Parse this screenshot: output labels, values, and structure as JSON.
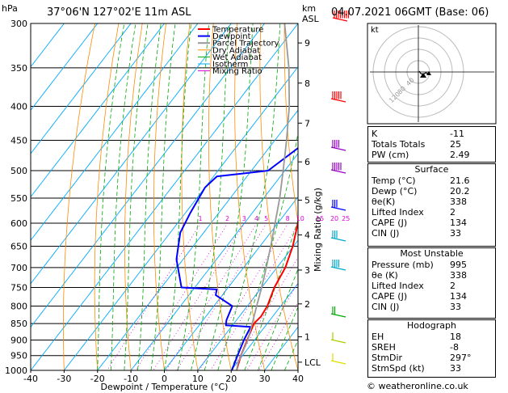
{
  "header": {
    "hpa_label": "hPa",
    "location": "37°06'N  127°02'E  11m  ASL",
    "km_label": "km",
    "asl_label": "ASL",
    "date": "04.07.2021  06GMT  (Base: 06)"
  },
  "legend": [
    {
      "label": "Temperature",
      "color": "#ff0000"
    },
    {
      "label": "Dewpoint",
      "color": "#0000ff"
    },
    {
      "label": "Parcel Trajectory",
      "color": "#999999"
    },
    {
      "label": "Dry Adiabat",
      "color": "#ff8c00"
    },
    {
      "label": "Wet Adiabat",
      "color": "#00aa00"
    },
    {
      "label": "Isotherm",
      "color": "#00aaff"
    },
    {
      "label": "Mixing Ratio",
      "color": "#dd00dd"
    }
  ],
  "chart_data": {
    "type": "line",
    "xlabel": "Dewpoint / Temperature (°C)",
    "ylabel": "hPa",
    "xlim": [
      -40,
      40
    ],
    "ylim": [
      1000,
      300
    ],
    "x_ticks": [
      "-40",
      "-30",
      "-20",
      "-10",
      "0",
      "10",
      "20",
      "30",
      "40"
    ],
    "pressure_ticks": [
      "300",
      "350",
      "400",
      "450",
      "500",
      "550",
      "600",
      "650",
      "700",
      "750",
      "800",
      "850",
      "900",
      "950",
      "1000"
    ],
    "height_ticks": [
      {
        "label": "9",
        "p": 321
      },
      {
        "label": "8",
        "p": 369
      },
      {
        "label": "7",
        "p": 424
      },
      {
        "label": "6",
        "p": 485
      },
      {
        "label": "5",
        "p": 554
      },
      {
        "label": "4",
        "p": 625
      },
      {
        "label": "3",
        "p": 706
      },
      {
        "label": "2",
        "p": 794
      },
      {
        "label": "1",
        "p": 890
      },
      {
        "label": "LCL",
        "p": 972
      }
    ],
    "mixing_ratio_label": "Mixing Ratio (g/kg)",
    "mixing_ratio_values": [
      "1",
      "2",
      "3",
      "4",
      "5",
      "8",
      "10",
      "15",
      "20",
      "25"
    ],
    "series": [
      {
        "name": "Temperature",
        "color": "#ff0000",
        "points": [
          [
            21.6,
            1000
          ],
          [
            19.5,
            950
          ],
          [
            17.8,
            900
          ],
          [
            16.0,
            850
          ],
          [
            16.5,
            830
          ],
          [
            16.0,
            800
          ],
          [
            13.8,
            750
          ],
          [
            12.5,
            700
          ],
          [
            9.8,
            650
          ],
          [
            6.0,
            600
          ],
          [
            1.8,
            550
          ],
          [
            -2.0,
            500
          ],
          [
            -6.5,
            475
          ],
          [
            -8.5,
            450
          ],
          [
            -10.5,
            420
          ],
          [
            -13.5,
            400
          ],
          [
            -18.0,
            375
          ],
          [
            -22.5,
            350
          ],
          [
            -32.0,
            300
          ]
        ]
      },
      {
        "name": "Dewpoint",
        "color": "#0000ff",
        "points": [
          [
            20.2,
            1000
          ],
          [
            18.5,
            950
          ],
          [
            16.8,
            900
          ],
          [
            15.8,
            860
          ],
          [
            8.0,
            855
          ],
          [
            7.0,
            840
          ],
          [
            5.5,
            800
          ],
          [
            -2.0,
            770
          ],
          [
            -3.0,
            755
          ],
          [
            -14.0,
            750
          ],
          [
            -22.0,
            680
          ],
          [
            -27.0,
            620
          ],
          [
            -28.5,
            580
          ],
          [
            -30.0,
            530
          ],
          [
            -29.0,
            510
          ],
          [
            -22.0,
            505
          ],
          [
            -15.0,
            500
          ],
          [
            -10.0,
            450
          ],
          [
            -12.5,
            440
          ],
          [
            -14.0,
            400
          ],
          [
            -19.0,
            350
          ],
          [
            -25.0,
            320
          ],
          [
            -30.0,
            300
          ]
        ]
      },
      {
        "name": "Parcel Trajectory",
        "color": "#999999",
        "points": [
          [
            21.6,
            1000
          ],
          [
            20.2,
            972
          ],
          [
            18.0,
            900
          ],
          [
            15.5,
            850
          ],
          [
            12.8,
            800
          ],
          [
            10.0,
            750
          ],
          [
            6.8,
            700
          ],
          [
            3.2,
            650
          ],
          [
            -0.8,
            600
          ],
          [
            -5.2,
            550
          ],
          [
            -10.5,
            500
          ],
          [
            -16.5,
            450
          ],
          [
            -23.5,
            400
          ],
          [
            -32.5,
            350
          ],
          [
            -44.0,
            300
          ]
        ]
      }
    ]
  },
  "hodograph": {
    "label": "kt",
    "rings": [
      "40",
      "80",
      "120"
    ]
  },
  "indices": [
    {
      "label": "K",
      "value": "-11"
    },
    {
      "label": "Totals Totals",
      "value": "25"
    },
    {
      "label": "PW (cm)",
      "value": "2.49"
    }
  ],
  "surface": {
    "title": "Surface",
    "rows": [
      {
        "label": "Temp (°C)",
        "value": "21.6"
      },
      {
        "label": "Dewp (°C)",
        "value": "20.2"
      },
      {
        "label": "θe(K)",
        "value": "338"
      },
      {
        "label": "Lifted Index",
        "value": "2"
      },
      {
        "label": "CAPE (J)",
        "value": "134"
      },
      {
        "label": "CIN (J)",
        "value": "33"
      }
    ]
  },
  "most_unstable": {
    "title": "Most Unstable",
    "rows": [
      {
        "label": "Pressure (mb)",
        "value": "995"
      },
      {
        "label": "θe (K)",
        "value": "338"
      },
      {
        "label": "Lifted Index",
        "value": "2"
      },
      {
        "label": "CAPE (J)",
        "value": "134"
      },
      {
        "label": "CIN (J)",
        "value": "33"
      }
    ]
  },
  "hodograph_table": {
    "title": "Hodograph",
    "rows": [
      {
        "label": "EH",
        "value": "18"
      },
      {
        "label": "SREH",
        "value": "-8"
      },
      {
        "label": "StmDir",
        "value": "297°"
      },
      {
        "label": "StmSpd (kt)",
        "value": "33"
      }
    ]
  },
  "copyright": "© weatheronline.co.uk"
}
